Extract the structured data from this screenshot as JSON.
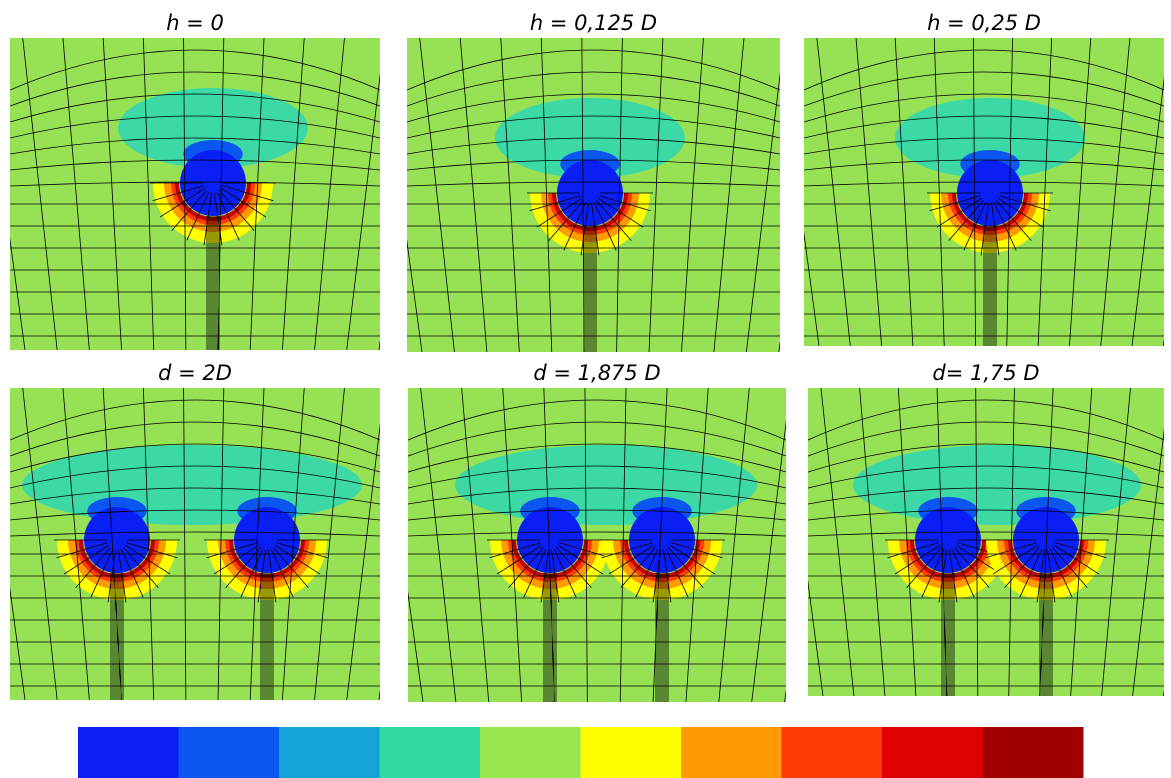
{
  "panels": [
    {
      "label": "h = 0"
    },
    {
      "label": "h = 0,125 D"
    },
    {
      "label": "h = 0,25 D"
    },
    {
      "label": "d = 2D"
    },
    {
      "label": "d = 1,875 D"
    },
    {
      "label": "d= 1,75 D"
    }
  ],
  "colorbar": {
    "colors": [
      "#0a1ff5",
      "#0b56f0",
      "#14a3d6",
      "#33dba4",
      "#9ae64e",
      "#ffff00",
      "#ff9a00",
      "#ff3a05",
      "#e00000",
      "#a00000"
    ]
  }
}
